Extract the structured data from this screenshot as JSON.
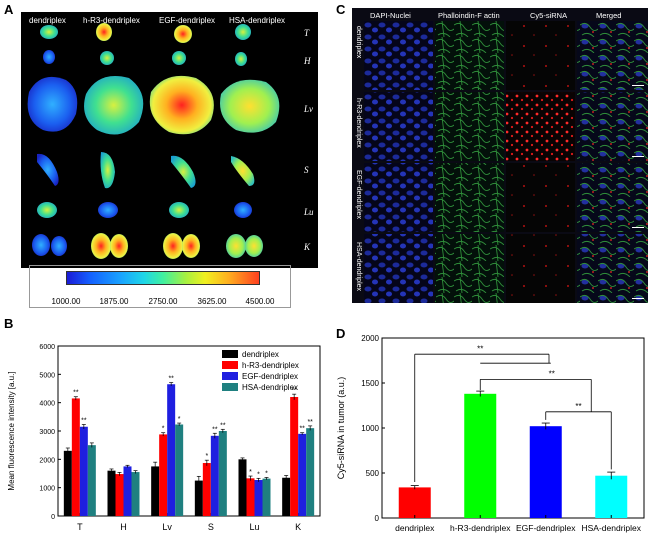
{
  "panel_labels": {
    "a": "A",
    "b": "B",
    "c": "C",
    "d": "D"
  },
  "panel_a": {
    "columns": [
      "dendriplex",
      "h-R3-dendriplex",
      "EGF-dendriplex",
      "HSA-dendriplex"
    ],
    "rows": [
      "T",
      "H",
      "Lv",
      "S",
      "Lu",
      "K"
    ],
    "colorbar_ticks": [
      "1000.00",
      "1875.00",
      "2750.00",
      "3625.00",
      "4500.00"
    ]
  },
  "panel_c": {
    "columns": [
      "DAPI-Nuclei",
      "Phalloindin-F actin",
      "Cy5-siRNA",
      "Merged"
    ],
    "rows": [
      "dendriplex",
      "h-R3-dendriplex",
      "EGF-dendriplex",
      "HSA-dendriplex"
    ]
  },
  "chart_data": [
    {
      "type": "bar",
      "panel": "B",
      "ylabel": "Mean fluorescence intensity [a.u.]",
      "xlabel": "",
      "categories": [
        "T",
        "H",
        "Lv",
        "S",
        "Lu",
        "K"
      ],
      "ylim": [
        0,
        6000
      ],
      "yticks": [
        "0",
        "1000",
        "2000",
        "3000",
        "4000",
        "5000",
        "6000"
      ],
      "legend_position": "top-right",
      "series": [
        {
          "name": "dendriplex",
          "color": "#000000",
          "values": [
            2300,
            1600,
            1750,
            1250,
            2000,
            1350
          ],
          "errors": [
            100,
            60,
            150,
            150,
            50,
            80
          ],
          "sig": [
            "",
            "",
            "",
            "",
            "",
            ""
          ]
        },
        {
          "name": "h-R3-dendriplex",
          "color": "#ff0000",
          "values": [
            4150,
            1480,
            2880,
            1870,
            1330,
            4200
          ],
          "errors": [
            60,
            60,
            60,
            100,
            80,
            100
          ],
          "sig": [
            "**",
            "",
            "*",
            "*",
            "*",
            "**"
          ]
        },
        {
          "name": "EGF-dendriplex",
          "color": "#1f1fe0",
          "values": [
            3150,
            1750,
            4650,
            2830,
            1270,
            2900
          ],
          "errors": [
            80,
            40,
            60,
            90,
            60,
            40
          ],
          "sig": [
            "**",
            "",
            "**",
            "**",
            "*",
            "**"
          ]
        },
        {
          "name": "HSA-dendriplex",
          "color": "#1f8080",
          "values": [
            2500,
            1550,
            3230,
            3000,
            1320,
            3100
          ],
          "errors": [
            80,
            50,
            50,
            60,
            40,
            80
          ],
          "sig": [
            "",
            "",
            "*",
            "**",
            "*",
            "**"
          ]
        }
      ]
    },
    {
      "type": "bar",
      "panel": "D",
      "ylabel": "Cy5-siRNA in tumor (a.u.)",
      "xlabel": "",
      "categories": [
        "dendriplex",
        "h-R3-dendriplex",
        "EGF-dendriplex",
        "HSA-dendriplex"
      ],
      "values": [
        340,
        1380,
        1020,
        470
      ],
      "errors": [
        20,
        30,
        35,
        40
      ],
      "colors": [
        "#ff0000",
        "#00ff00",
        "#0000ff",
        "#00ffff"
      ],
      "ylim": [
        0,
        2000
      ],
      "yticks": [
        "0",
        "500",
        "1000",
        "1500",
        "2000"
      ],
      "significance": [
        "**",
        "**",
        "**"
      ]
    }
  ]
}
